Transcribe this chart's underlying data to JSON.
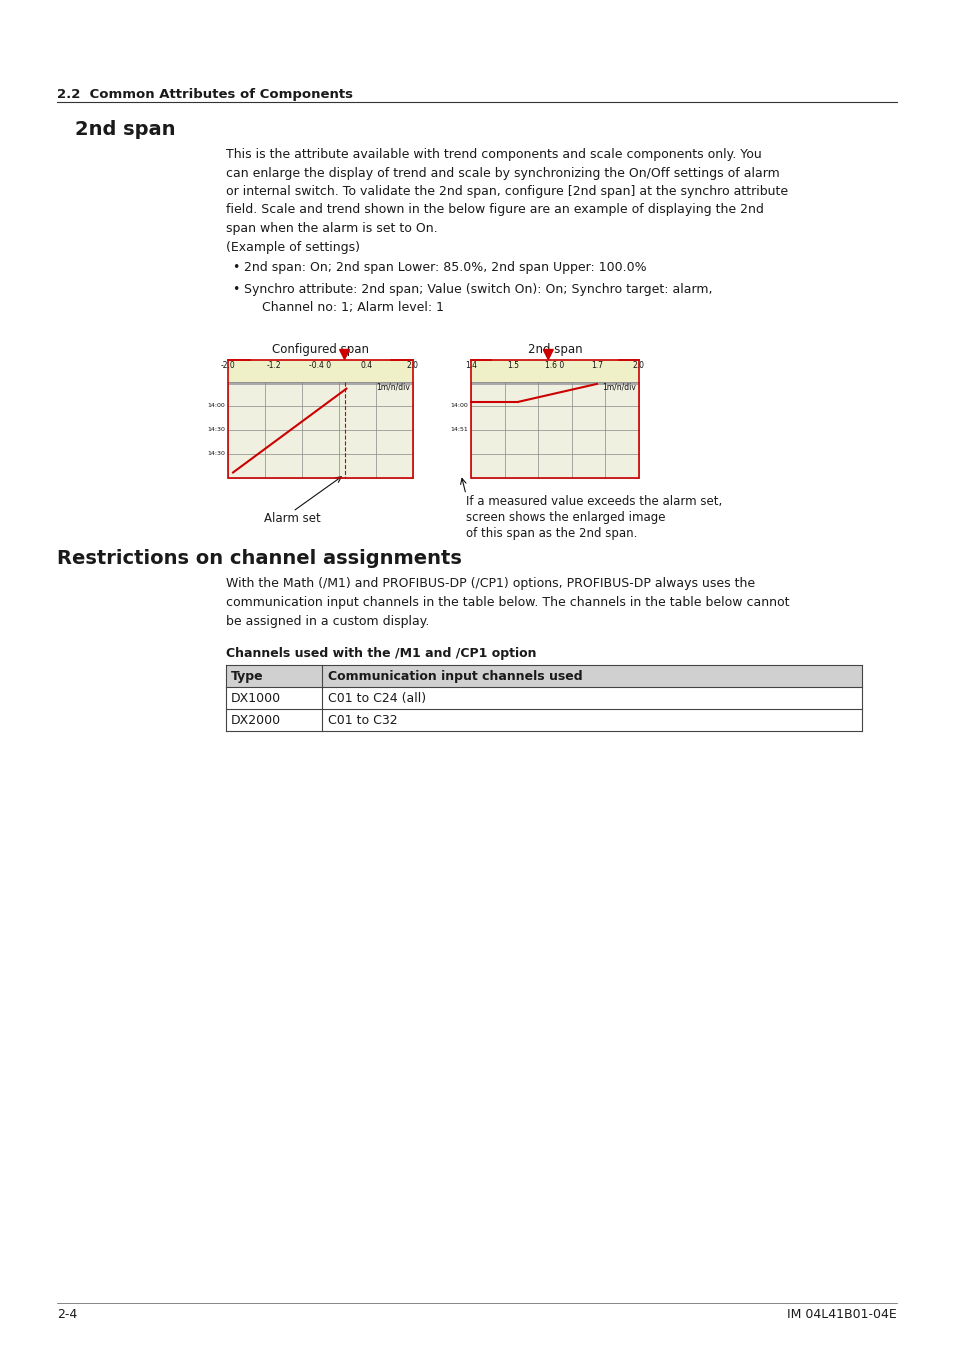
{
  "bg_color": "#ffffff",
  "section_header": "2.2  Common Attributes of Components",
  "section_title": "2nd span",
  "section_title2": "Restrictions on channel assignments",
  "body_text_lines": [
    "This is the attribute available with trend components and scale components only. You",
    "can enlarge the display of trend and scale by synchronizing the On/Off settings of alarm",
    "or internal switch. To validate the 2nd span, configure [2nd span] at the synchro attribute",
    "field. Scale and trend shown in the below figure are an example of displaying the 2nd",
    "span when the alarm is set to On.",
    "(Example of settings)"
  ],
  "bullet1": "2nd span: On; 2nd span Lower: 85.0%, 2nd span Upper: 100.0%",
  "bullet2a": "Synchro attribute: 2nd span; Value (switch On): On; Synchro target: alarm,",
  "bullet2b": "Channel no: 1; Alarm level: 1",
  "caption_left": "Configured span",
  "caption_right": "2nd span",
  "alarm_set_label": "Alarm set",
  "note_line1": "If a measured value exceeds the alarm set,",
  "note_line2": "screen shows the enlarged image",
  "note_line3": "of this span as the 2nd span.",
  "restrictions_lines": [
    "With the Math (/M1) and PROFIBUS-DP (/CP1) options, PROFIBUS-DP always uses the",
    "communication input channels in the table below. The channels in the table below cannot",
    "be assigned in a custom display."
  ],
  "table_title": "Channels used with the /M1 and /CP1 option",
  "table_headers": [
    "Type",
    "Communication input channels used"
  ],
  "table_rows": [
    [
      "DX1000",
      "C01 to C24 (all)"
    ],
    [
      "DX2000",
      "C01 to C32"
    ]
  ],
  "footer_left": "2-4",
  "footer_right": "IM 04L41B01-04E",
  "left_scale_labels": [
    "-2.0",
    "-1.2",
    "-0.4 0",
    "0.4",
    "2.0"
  ],
  "right_scale_labels": [
    "1.4",
    "1.5",
    "1.6 0",
    "1.7",
    "2.0"
  ],
  "left_time_labels": [
    "14:00",
    "14:30",
    "14:30"
  ],
  "right_time_labels": [
    "14:00",
    "14:51"
  ]
}
